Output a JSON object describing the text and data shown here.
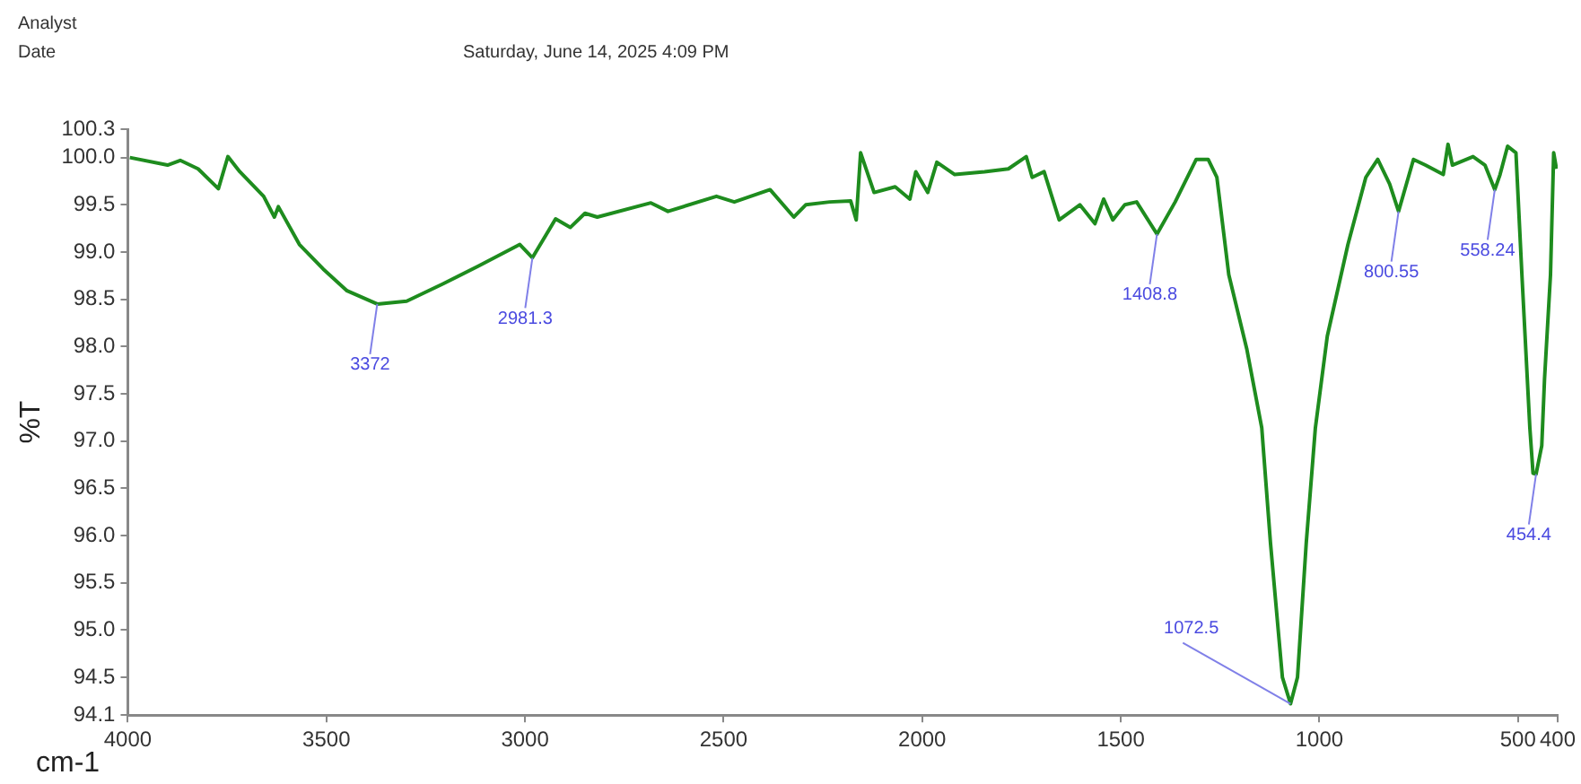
{
  "chart_data": {
    "type": "line",
    "xlabel": "cm-1",
    "ylabel": "%T",
    "x": [
      3995,
      3900,
      3868,
      3823,
      3772,
      3748,
      3718,
      3658,
      3631,
      3621,
      3568,
      3508,
      3448,
      3372,
      3298,
      3208,
      3118,
      3013,
      2981.3,
      2923,
      2886,
      2849,
      2818,
      2683,
      2640,
      2518,
      2473,
      2383,
      2323,
      2293,
      2233,
      2180,
      2166,
      2155,
      2121,
      2068,
      2031,
      2016,
      1986,
      1963,
      1918,
      1843,
      1783,
      1738,
      1723,
      1693,
      1655,
      1603,
      1565,
      1543,
      1520,
      1490,
      1460,
      1408.8,
      1363,
      1310,
      1280,
      1258,
      1228,
      1183,
      1145,
      1123,
      1093,
      1072.5,
      1055,
      1033,
      1010,
      980,
      928,
      883,
      853,
      823,
      800.55,
      763,
      733,
      688,
      676,
      665,
      613,
      583,
      558.24,
      545,
      526,
      505,
      490,
      470,
      462,
      454.4,
      440,
      433,
      418,
      410,
      403
    ],
    "series": [
      {
        "color": "#1e8c1e",
        "values": [
          100.0,
          99.92,
          99.97,
          99.88,
          99.67,
          100.01,
          99.85,
          99.59,
          99.37,
          99.48,
          99.08,
          98.82,
          98.59,
          98.45,
          98.48,
          98.66,
          98.85,
          99.08,
          98.94,
          99.35,
          99.26,
          99.41,
          99.37,
          99.52,
          99.43,
          99.59,
          99.53,
          99.66,
          99.37,
          99.5,
          99.53,
          99.54,
          99.34,
          100.05,
          99.63,
          99.69,
          99.56,
          99.85,
          99.63,
          99.95,
          99.82,
          99.85,
          99.88,
          100.01,
          99.79,
          99.85,
          99.34,
          99.5,
          99.3,
          99.56,
          99.34,
          99.5,
          99.53,
          99.19,
          99.53,
          99.98,
          99.98,
          99.79,
          98.76,
          97.98,
          97.14,
          95.92,
          94.5,
          94.22,
          94.5,
          95.92,
          97.14,
          98.11,
          99.08,
          99.79,
          99.98,
          99.72,
          99.43,
          99.98,
          99.92,
          99.82,
          100.14,
          99.92,
          100.01,
          99.92,
          99.66,
          99.82,
          100.12,
          100.05,
          98.76,
          97.14,
          96.66,
          96.65,
          96.95,
          97.66,
          98.76,
          100.05,
          99.88
        ]
      }
    ],
    "xlim": [
      4000,
      400
    ],
    "xticks": [
      4000,
      3500,
      3000,
      2500,
      2000,
      1500,
      1000,
      500,
      400
    ],
    "ylim": [
      94.1,
      100.3
    ],
    "yticks": [
      94.1,
      94.5,
      {
        "value": 95,
        "label": "95.0"
      },
      95.5,
      {
        "value": 96,
        "label": "96.0"
      },
      96.5,
      {
        "value": 97,
        "label": "97.0"
      },
      97.5,
      {
        "value": 98,
        "label": "98.0"
      },
      98.5,
      {
        "value": 99,
        "label": "99.0"
      },
      99.5,
      {
        "value": 100,
        "label": "100.0"
      },
      100.3
    ],
    "grid": false,
    "legend": false,
    "marker": "none",
    "line_style": "solid",
    "annotations": [
      "Analyst",
      "Date",
      "Saturday, June 14, 2025 4:09 PM",
      {
        "text": "3372",
        "x": 3372,
        "y": 98.45
      },
      {
        "text": "2981.3",
        "x": 2981.3,
        "y": 98.94
      },
      {
        "text": "1408.8",
        "x": 1408.8,
        "y": 99.19
      },
      {
        "text": "1072.5",
        "x": 1072.5,
        "y": 94.22
      },
      {
        "text": "800.55",
        "x": 800.55,
        "y": 99.43
      },
      {
        "text": "558.24",
        "x": 558.24,
        "y": 99.66
      },
      {
        "text": "454.4",
        "x": 454.4,
        "y": 96.65
      }
    ]
  }
}
